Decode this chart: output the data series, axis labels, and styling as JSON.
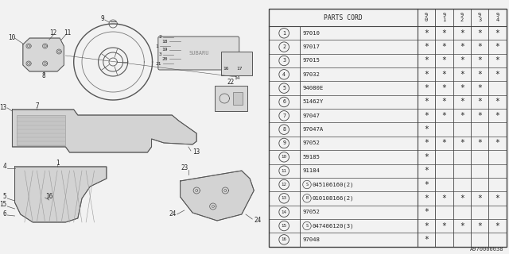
{
  "diagram_code": "A970000038",
  "rows": [
    {
      "num": "1",
      "prefix": "",
      "part": "97010",
      "cols": [
        true,
        true,
        true,
        true,
        true
      ]
    },
    {
      "num": "2",
      "prefix": "",
      "part": "97017",
      "cols": [
        true,
        true,
        true,
        true,
        true
      ]
    },
    {
      "num": "3",
      "prefix": "",
      "part": "97015",
      "cols": [
        true,
        true,
        true,
        true,
        true
      ]
    },
    {
      "num": "4",
      "prefix": "",
      "part": "97032",
      "cols": [
        true,
        true,
        true,
        true,
        true
      ]
    },
    {
      "num": "5",
      "prefix": "",
      "part": "94080E",
      "cols": [
        true,
        true,
        true,
        true,
        false
      ]
    },
    {
      "num": "6",
      "prefix": "",
      "part": "51462Y",
      "cols": [
        true,
        true,
        true,
        true,
        true
      ]
    },
    {
      "num": "7",
      "prefix": "",
      "part": "97047",
      "cols": [
        true,
        true,
        true,
        true,
        true
      ]
    },
    {
      "num": "8",
      "prefix": "",
      "part": "97047A",
      "cols": [
        true,
        false,
        false,
        false,
        false
      ]
    },
    {
      "num": "9",
      "prefix": "",
      "part": "97052",
      "cols": [
        true,
        true,
        true,
        true,
        true
      ]
    },
    {
      "num": "10",
      "prefix": "",
      "part": "59185",
      "cols": [
        true,
        false,
        false,
        false,
        false
      ]
    },
    {
      "num": "11",
      "prefix": "",
      "part": "91184",
      "cols": [
        true,
        false,
        false,
        false,
        false
      ]
    },
    {
      "num": "12",
      "prefix": "S",
      "part": "045106160(2)",
      "cols": [
        true,
        false,
        false,
        false,
        false
      ]
    },
    {
      "num": "13",
      "prefix": "B",
      "part": "010108166(2)",
      "cols": [
        true,
        true,
        true,
        true,
        true
      ]
    },
    {
      "num": "14",
      "prefix": "",
      "part": "97052",
      "cols": [
        true,
        false,
        false,
        false,
        false
      ]
    },
    {
      "num": "15",
      "prefix": "S",
      "part": "047406120(3)",
      "cols": [
        true,
        true,
        true,
        true,
        true
      ]
    },
    {
      "num": "16",
      "prefix": "",
      "part": "97048",
      "cols": [
        true,
        false,
        false,
        false,
        false
      ]
    }
  ],
  "bg_color": "#f0f0f0",
  "line_color": "#444444",
  "text_color": "#222222",
  "star": "*",
  "year_labels": [
    "9\n0",
    "9\n1",
    "9\n2",
    "9\n3",
    "9\n4"
  ]
}
